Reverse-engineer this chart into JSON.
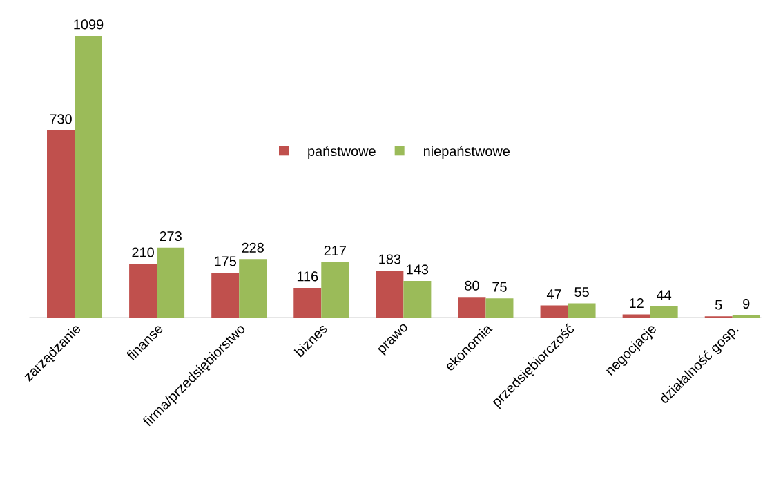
{
  "chart_data": {
    "type": "bar",
    "categories": [
      "zarządzanie",
      "finanse",
      "firma/przedsiębiorstwo",
      "biznes",
      "prawo",
      "ekonomia",
      "przedsiębiorczość",
      "negocjacje",
      "działalność gosp."
    ],
    "series": [
      {
        "name": "państwowe",
        "color": "#c0504d",
        "values": [
          730,
          210,
          175,
          116,
          183,
          80,
          47,
          12,
          5
        ]
      },
      {
        "name": "niepaństwowe",
        "color": "#9bbb59",
        "values": [
          1099,
          273,
          228,
          217,
          143,
          75,
          55,
          44,
          9
        ]
      }
    ],
    "data_labels": true,
    "legend": "top"
  }
}
